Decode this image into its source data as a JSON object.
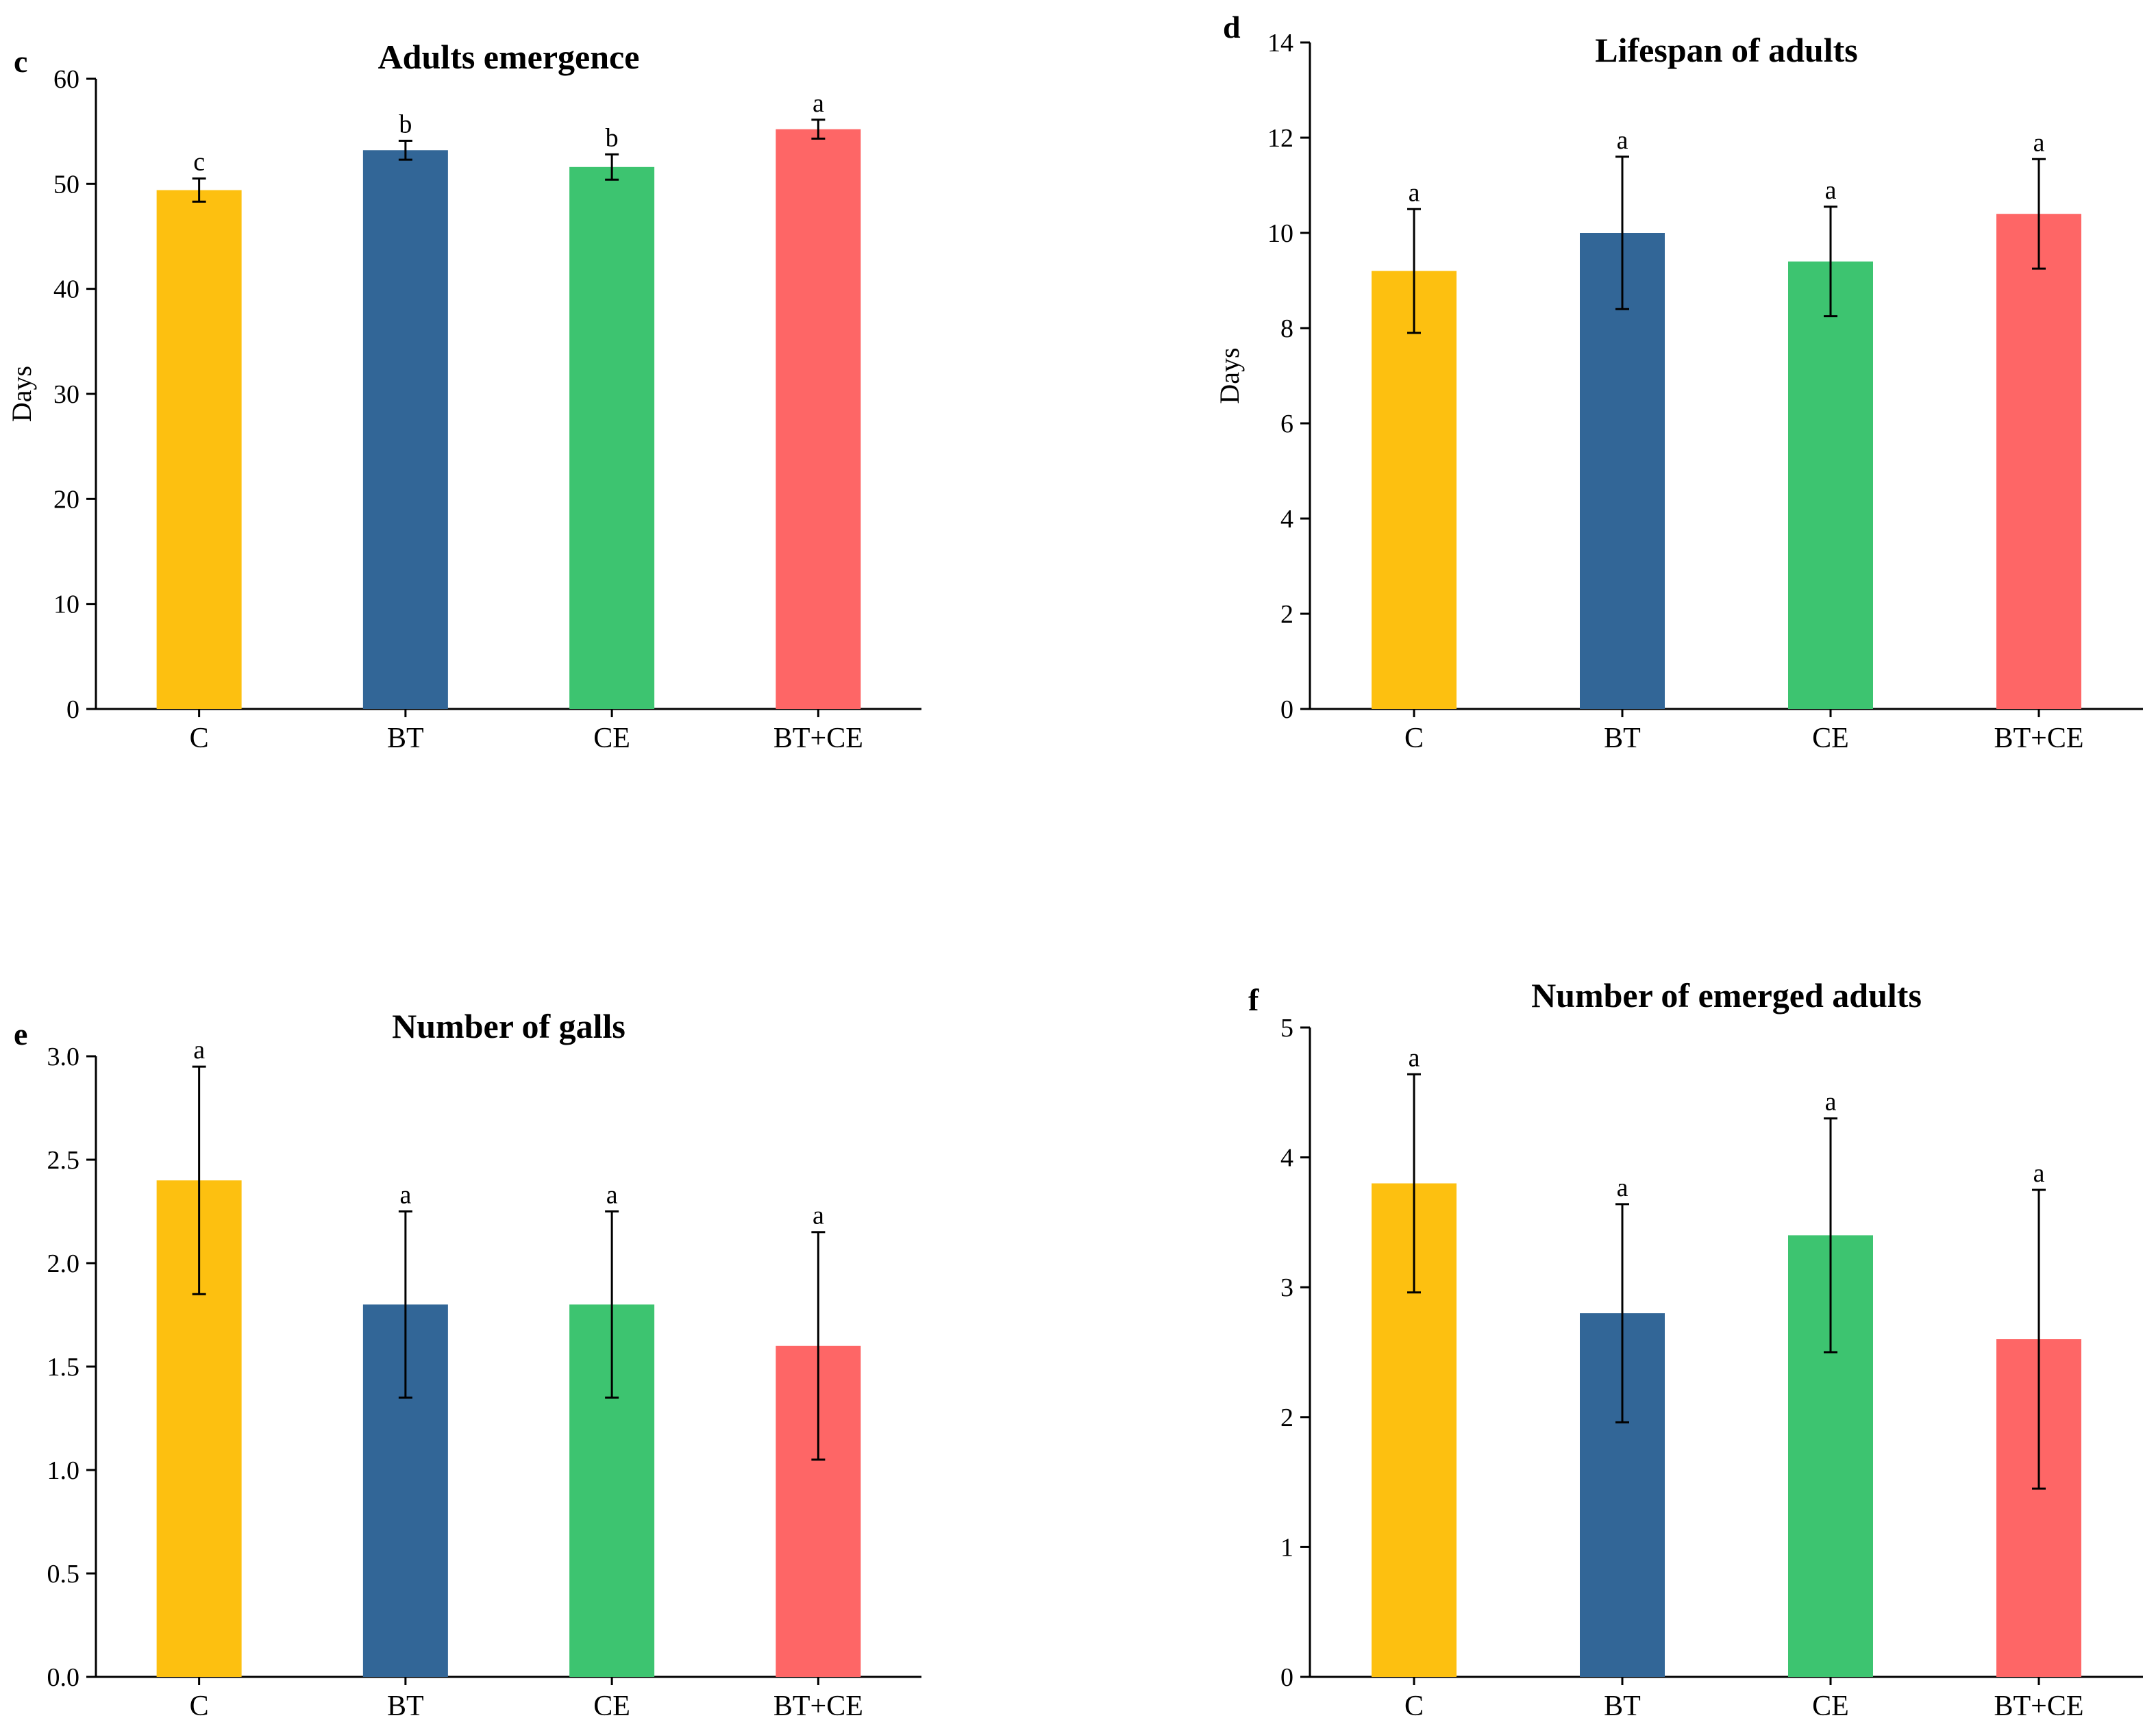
{
  "chart_data": [
    {
      "panel": "c",
      "type": "bar",
      "title": "Adults emergence",
      "xlabel": "",
      "ylabel": "Days",
      "categories": [
        "C",
        "BT",
        "CE",
        "BT+CE"
      ],
      "values": [
        49.4,
        53.2,
        51.6,
        55.2
      ],
      "errors": [
        1.1,
        0.9,
        1.2,
        0.9
      ],
      "significance": [
        "c",
        "b",
        "b",
        "a"
      ],
      "ylim": [
        0,
        60
      ],
      "yticks": [
        0,
        10,
        20,
        30,
        40,
        50,
        60
      ],
      "ytick_labels": [
        "0",
        "10",
        "20",
        "30",
        "40",
        "50",
        "60"
      ],
      "colors": [
        "#FDC010",
        "#326697",
        "#3DC470",
        "#FE6666"
      ]
    },
    {
      "panel": "d",
      "type": "bar",
      "title": "Lifespan of adults",
      "xlabel": "",
      "ylabel": "Days",
      "categories": [
        "C",
        "BT",
        "CE",
        "BT+CE"
      ],
      "values": [
        9.2,
        10.0,
        9.4,
        10.4
      ],
      "errors": [
        1.3,
        1.6,
        1.15,
        1.15
      ],
      "significance": [
        "a",
        "a",
        "a",
        "a"
      ],
      "ylim": [
        0,
        14
      ],
      "yticks": [
        0,
        2,
        4,
        6,
        8,
        10,
        12,
        14
      ],
      "ytick_labels": [
        "0",
        "2",
        "4",
        "6",
        "8",
        "10",
        "12",
        "14"
      ],
      "colors": [
        "#FDC010",
        "#326697",
        "#3DC470",
        "#FE6666"
      ]
    },
    {
      "panel": "e",
      "type": "bar",
      "title": "Number of galls",
      "xlabel": "",
      "ylabel": "",
      "categories": [
        "C",
        "BT",
        "CE",
        "BT+CE"
      ],
      "values": [
        2.4,
        1.8,
        1.8,
        1.6
      ],
      "errors": [
        0.55,
        0.45,
        0.45,
        0.55
      ],
      "significance": [
        "a",
        "a",
        "a",
        "a"
      ],
      "ylim": [
        0,
        3.0
      ],
      "yticks": [
        0,
        0.5,
        1.0,
        1.5,
        2.0,
        2.5,
        3.0
      ],
      "ytick_labels": [
        "0.0",
        "0.5",
        "1.0",
        "1.5",
        "2.0",
        "2.5",
        "3.0"
      ],
      "colors": [
        "#FDC010",
        "#326697",
        "#3DC470",
        "#FE6666"
      ]
    },
    {
      "panel": "f",
      "type": "bar",
      "title": "Number of emerged adults",
      "xlabel": "",
      "ylabel": "",
      "categories": [
        "C",
        "BT",
        "CE",
        "BT+CE"
      ],
      "values": [
        3.8,
        2.8,
        3.4,
        2.6
      ],
      "errors": [
        0.84,
        0.84,
        0.9,
        1.15
      ],
      "significance": [
        "a",
        "a",
        "a",
        "a"
      ],
      "ylim": [
        0,
        5
      ],
      "yticks": [
        0,
        1,
        2,
        3,
        4,
        5
      ],
      "ytick_labels": [
        "0",
        "1",
        "2",
        "3",
        "4",
        "5"
      ],
      "colors": [
        "#FDC010",
        "#326697",
        "#3DC470",
        "#FE6666"
      ]
    }
  ]
}
